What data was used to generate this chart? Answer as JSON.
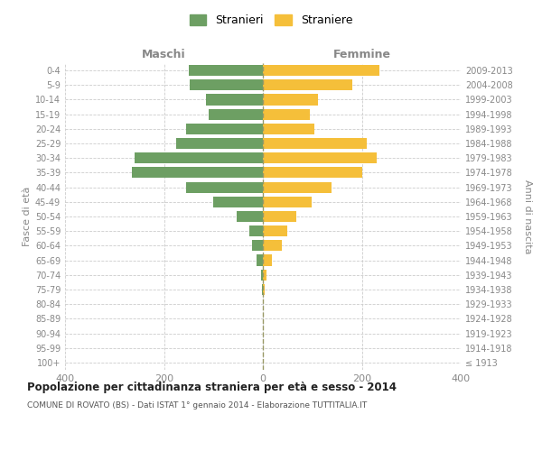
{
  "age_groups": [
    "100+",
    "95-99",
    "90-94",
    "85-89",
    "80-84",
    "75-79",
    "70-74",
    "65-69",
    "60-64",
    "55-59",
    "50-54",
    "45-49",
    "40-44",
    "35-39",
    "30-34",
    "25-29",
    "20-24",
    "15-19",
    "10-14",
    "5-9",
    "0-4"
  ],
  "birth_years": [
    "≤ 1913",
    "1914-1918",
    "1919-1923",
    "1924-1928",
    "1929-1933",
    "1934-1938",
    "1939-1943",
    "1944-1948",
    "1949-1953",
    "1954-1958",
    "1959-1963",
    "1964-1968",
    "1969-1973",
    "1974-1978",
    "1979-1983",
    "1984-1988",
    "1989-1993",
    "1994-1998",
    "1999-2003",
    "2004-2008",
    "2009-2013"
  ],
  "maschi": [
    0,
    0,
    0,
    0,
    0,
    2,
    4,
    13,
    22,
    27,
    53,
    100,
    155,
    265,
    260,
    175,
    155,
    110,
    115,
    148,
    150
  ],
  "femmine": [
    0,
    0,
    0,
    0,
    0,
    4,
    7,
    18,
    38,
    50,
    68,
    98,
    138,
    200,
    230,
    210,
    105,
    95,
    112,
    180,
    235
  ],
  "maschi_color": "#6d9f63",
  "femmine_color": "#f5bf3a",
  "title": "Popolazione per cittadinanza straniera per età e sesso - 2014",
  "subtitle": "COMUNE DI ROVATO (BS) - Dati ISTAT 1° gennaio 2014 - Elaborazione TUTTITALIA.IT",
  "xlabel_left": "Maschi",
  "xlabel_right": "Femmine",
  "ylabel_left": "Fasce di età",
  "ylabel_right": "Anni di nascita",
  "legend_maschi": "Stranieri",
  "legend_femmine": "Straniere",
  "xlim": 400,
  "background_color": "#ffffff",
  "grid_color": "#cccccc",
  "axis_label_color": "#888888",
  "tick_color": "#888888"
}
